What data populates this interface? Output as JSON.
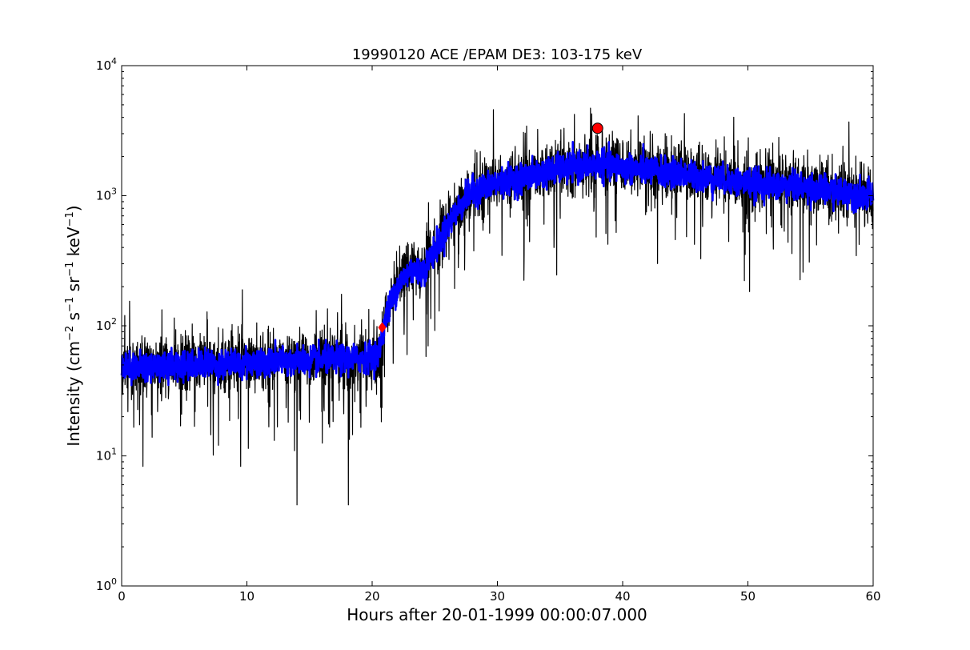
{
  "chart_data": {
    "type": "line",
    "title": "19990120 ACE /EPAM DE3: 103-175 keV",
    "xlabel": "Hours after 20-01-1999 00:00:07.000",
    "ylabel": {
      "prefix": "Intensity (cm",
      "sup1": "−2",
      "mid1": " s",
      "sup2": "−1",
      "mid2": " sr",
      "sup3": "−1",
      "mid3": " keV",
      "sup4": "−1",
      "suffix": ")"
    },
    "xlim": [
      0,
      60
    ],
    "ylim": [
      1,
      10000
    ],
    "yscale": "log",
    "grid": false,
    "x_ticks": [
      {
        "value": 0,
        "label": "0"
      },
      {
        "value": 10,
        "label": "10"
      },
      {
        "value": 20,
        "label": "20"
      },
      {
        "value": 30,
        "label": "30"
      },
      {
        "value": 40,
        "label": "40"
      },
      {
        "value": 50,
        "label": "50"
      },
      {
        "value": 60,
        "label": "60"
      }
    ],
    "y_ticks": [
      {
        "value": 1,
        "base": "10",
        "exp": "0"
      },
      {
        "value": 10,
        "base": "10",
        "exp": "1"
      },
      {
        "value": 100,
        "base": "10",
        "exp": "2"
      },
      {
        "value": 1000,
        "base": "10",
        "exp": "3"
      },
      {
        "value": 10000,
        "base": "10",
        "exp": "4"
      }
    ],
    "series": [
      {
        "color": "#000000",
        "style": "raw-noisy",
        "profile": [
          [
            0,
            50
          ],
          [
            10,
            52
          ],
          [
            19,
            55
          ],
          [
            20.5,
            60
          ],
          [
            21,
            110
          ],
          [
            22,
            200
          ],
          [
            23,
            280
          ],
          [
            24,
            270
          ],
          [
            25,
            400
          ],
          [
            26,
            600
          ],
          [
            27,
            850
          ],
          [
            28,
            1100
          ],
          [
            30,
            1300
          ],
          [
            35,
            1600
          ],
          [
            38,
            1800
          ],
          [
            40,
            1700
          ],
          [
            45,
            1500
          ],
          [
            50,
            1300
          ],
          [
            55,
            1200
          ],
          [
            60,
            1000
          ]
        ],
        "dips": [
          [
            14,
            4.2
          ],
          [
            18.1,
            4.2
          ],
          [
            1.7,
            8.3
          ],
          [
            9.5,
            8.3
          ],
          [
            24.3,
            58
          ]
        ]
      },
      {
        "color": "#0000ff",
        "style": "smoothed",
        "profile": [
          [
            0,
            48
          ],
          [
            10,
            52
          ],
          [
            19,
            56
          ],
          [
            20.5,
            60
          ],
          [
            21,
            110
          ],
          [
            22,
            200
          ],
          [
            23,
            270
          ],
          [
            24,
            260
          ],
          [
            25,
            380
          ],
          [
            26,
            580
          ],
          [
            27,
            830
          ],
          [
            28,
            1080
          ],
          [
            30,
            1250
          ],
          [
            35,
            1600
          ],
          [
            38,
            1750
          ],
          [
            40,
            1650
          ],
          [
            45,
            1450
          ],
          [
            50,
            1250
          ],
          [
            55,
            1150
          ],
          [
            60,
            1000
          ]
        ]
      }
    ],
    "markers": [
      {
        "shape": "diamond",
        "color": "#ff0000",
        "x": 20.8,
        "y": 97
      },
      {
        "shape": "circle",
        "color": "#ff0000",
        "x": 38.0,
        "y": 3300
      }
    ]
  }
}
